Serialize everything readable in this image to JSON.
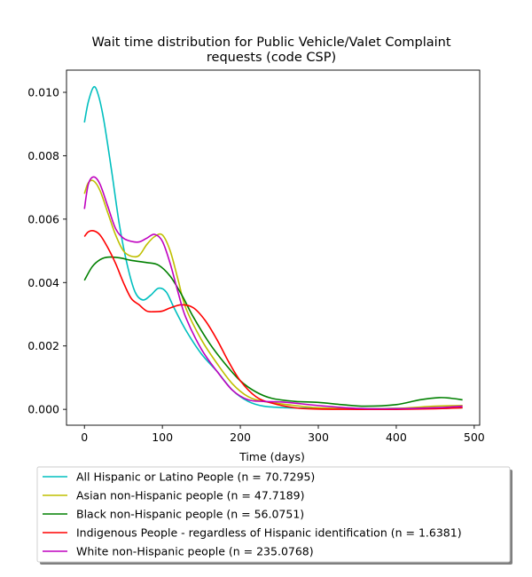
{
  "chart_data": {
    "type": "line",
    "title_lines": [
      "Wait time distribution  for Public Vehicle/Valet Complaint",
      "requests (code CSP)"
    ],
    "xlabel": "Time (days)",
    "ylabel": "",
    "xlim": [
      -23,
      507
    ],
    "ylim": [
      -0.0005,
      0.0107
    ],
    "xticks": [
      0,
      100,
      200,
      300,
      400,
      500
    ],
    "yticks": [
      0.0,
      0.002,
      0.004,
      0.006,
      0.008,
      0.01
    ],
    "ytick_labels": [
      "0.000",
      "0.002",
      "0.004",
      "0.006",
      "0.008",
      "0.010"
    ],
    "grid": false,
    "legend_position": "bottom",
    "series": [
      {
        "name": "All Hispanic or Latino People (n = 70.7295)",
        "color": "#00bfbf",
        "points": [
          [
            0,
            0.00905
          ],
          [
            5,
            0.0097
          ],
          [
            12,
            0.01017
          ],
          [
            18,
            0.0099
          ],
          [
            25,
            0.0091
          ],
          [
            35,
            0.0075
          ],
          [
            45,
            0.0058
          ],
          [
            55,
            0.00455
          ],
          [
            65,
            0.0037
          ],
          [
            75,
            0.00345
          ],
          [
            85,
            0.0036
          ],
          [
            95,
            0.00382
          ],
          [
            105,
            0.0037
          ],
          [
            115,
            0.0032
          ],
          [
            130,
            0.0025
          ],
          [
            150,
            0.00175
          ],
          [
            170,
            0.0012
          ],
          [
            190,
            0.0006
          ],
          [
            210,
            0.00025
          ],
          [
            230,
            0.0001
          ],
          [
            260,
            5e-05
          ],
          [
            300,
            3e-05
          ],
          [
            350,
            1e-05
          ],
          [
            400,
            3e-05
          ],
          [
            450,
            3e-05
          ],
          [
            485,
            5e-05
          ]
        ]
      },
      {
        "name": "Asian non-Hispanic people (n = 47.7189)",
        "color": "#bfbf00",
        "points": [
          [
            0,
            0.0068
          ],
          [
            5,
            0.00715
          ],
          [
            12,
            0.0072
          ],
          [
            20,
            0.0069
          ],
          [
            30,
            0.0062
          ],
          [
            40,
            0.0055
          ],
          [
            50,
            0.005
          ],
          [
            60,
            0.00483
          ],
          [
            70,
            0.00485
          ],
          [
            80,
            0.0052
          ],
          [
            90,
            0.00545
          ],
          [
            100,
            0.0055
          ],
          [
            110,
            0.005
          ],
          [
            120,
            0.0041
          ],
          [
            130,
            0.0032
          ],
          [
            150,
            0.0022
          ],
          [
            170,
            0.00145
          ],
          [
            190,
            0.0008
          ],
          [
            210,
            0.0004
          ],
          [
            230,
            0.00025
          ],
          [
            260,
            0.00015
          ],
          [
            300,
            5e-05
          ],
          [
            350,
            2e-05
          ],
          [
            400,
            3e-05
          ],
          [
            450,
            0.0001
          ],
          [
            485,
            0.00012
          ]
        ]
      },
      {
        "name": "Black non-Hispanic people (n = 56.0751)",
        "color": "#008000",
        "points": [
          [
            0,
            0.00407
          ],
          [
            10,
            0.0045
          ],
          [
            20,
            0.00472
          ],
          [
            30,
            0.0048
          ],
          [
            45,
            0.00478
          ],
          [
            60,
            0.0047
          ],
          [
            80,
            0.00463
          ],
          [
            95,
            0.00455
          ],
          [
            110,
            0.0042
          ],
          [
            125,
            0.0036
          ],
          [
            140,
            0.0029
          ],
          [
            160,
            0.0021
          ],
          [
            180,
            0.00145
          ],
          [
            200,
            0.0009
          ],
          [
            220,
            0.00055
          ],
          [
            240,
            0.00035
          ],
          [
            270,
            0.00025
          ],
          [
            300,
            0.00022
          ],
          [
            330,
            0.00015
          ],
          [
            360,
            0.0001
          ],
          [
            400,
            0.00015
          ],
          [
            430,
            0.0003
          ],
          [
            455,
            0.00037
          ],
          [
            470,
            0.00035
          ],
          [
            485,
            0.0003
          ]
        ]
      },
      {
        "name": "Indigenous People - regardless of Hispanic identification (n = 1.6381)",
        "color": "#ff0000",
        "points": [
          [
            0,
            0.00545
          ],
          [
            5,
            0.0056
          ],
          [
            12,
            0.00563
          ],
          [
            20,
            0.0055
          ],
          [
            30,
            0.0051
          ],
          [
            40,
            0.0046
          ],
          [
            50,
            0.004
          ],
          [
            60,
            0.0035
          ],
          [
            70,
            0.0033
          ],
          [
            80,
            0.0031
          ],
          [
            90,
            0.00308
          ],
          [
            100,
            0.0031
          ],
          [
            110,
            0.0032
          ],
          [
            125,
            0.0033
          ],
          [
            140,
            0.0032
          ],
          [
            155,
            0.0028
          ],
          [
            170,
            0.0022
          ],
          [
            185,
            0.0015
          ],
          [
            200,
            0.0009
          ],
          [
            220,
            0.0004
          ],
          [
            240,
            0.0002
          ],
          [
            270,
            5e-05
          ],
          [
            300,
            1e-05
          ],
          [
            350,
            0.0
          ],
          [
            400,
            0.0
          ],
          [
            450,
            2e-05
          ],
          [
            485,
            5e-05
          ]
        ]
      },
      {
        "name": "White non-Hispanic people (n = 235.0768)",
        "color": "#bf00bf",
        "points": [
          [
            0,
            0.00632
          ],
          [
            5,
            0.0071
          ],
          [
            12,
            0.00733
          ],
          [
            20,
            0.0071
          ],
          [
            30,
            0.0064
          ],
          [
            40,
            0.0057
          ],
          [
            50,
            0.0054
          ],
          [
            60,
            0.0053
          ],
          [
            70,
            0.00528
          ],
          [
            80,
            0.0054
          ],
          [
            90,
            0.00552
          ],
          [
            100,
            0.0053
          ],
          [
            110,
            0.0046
          ],
          [
            120,
            0.0037
          ],
          [
            130,
            0.0029
          ],
          [
            150,
            0.0019
          ],
          [
            170,
            0.0012
          ],
          [
            190,
            0.0006
          ],
          [
            210,
            0.0003
          ],
          [
            230,
            0.00025
          ],
          [
            260,
            0.00022
          ],
          [
            300,
            0.00012
          ],
          [
            350,
            3e-05
          ],
          [
            400,
            2e-05
          ],
          [
            450,
            5e-05
          ],
          [
            485,
            0.0001
          ]
        ]
      }
    ]
  }
}
